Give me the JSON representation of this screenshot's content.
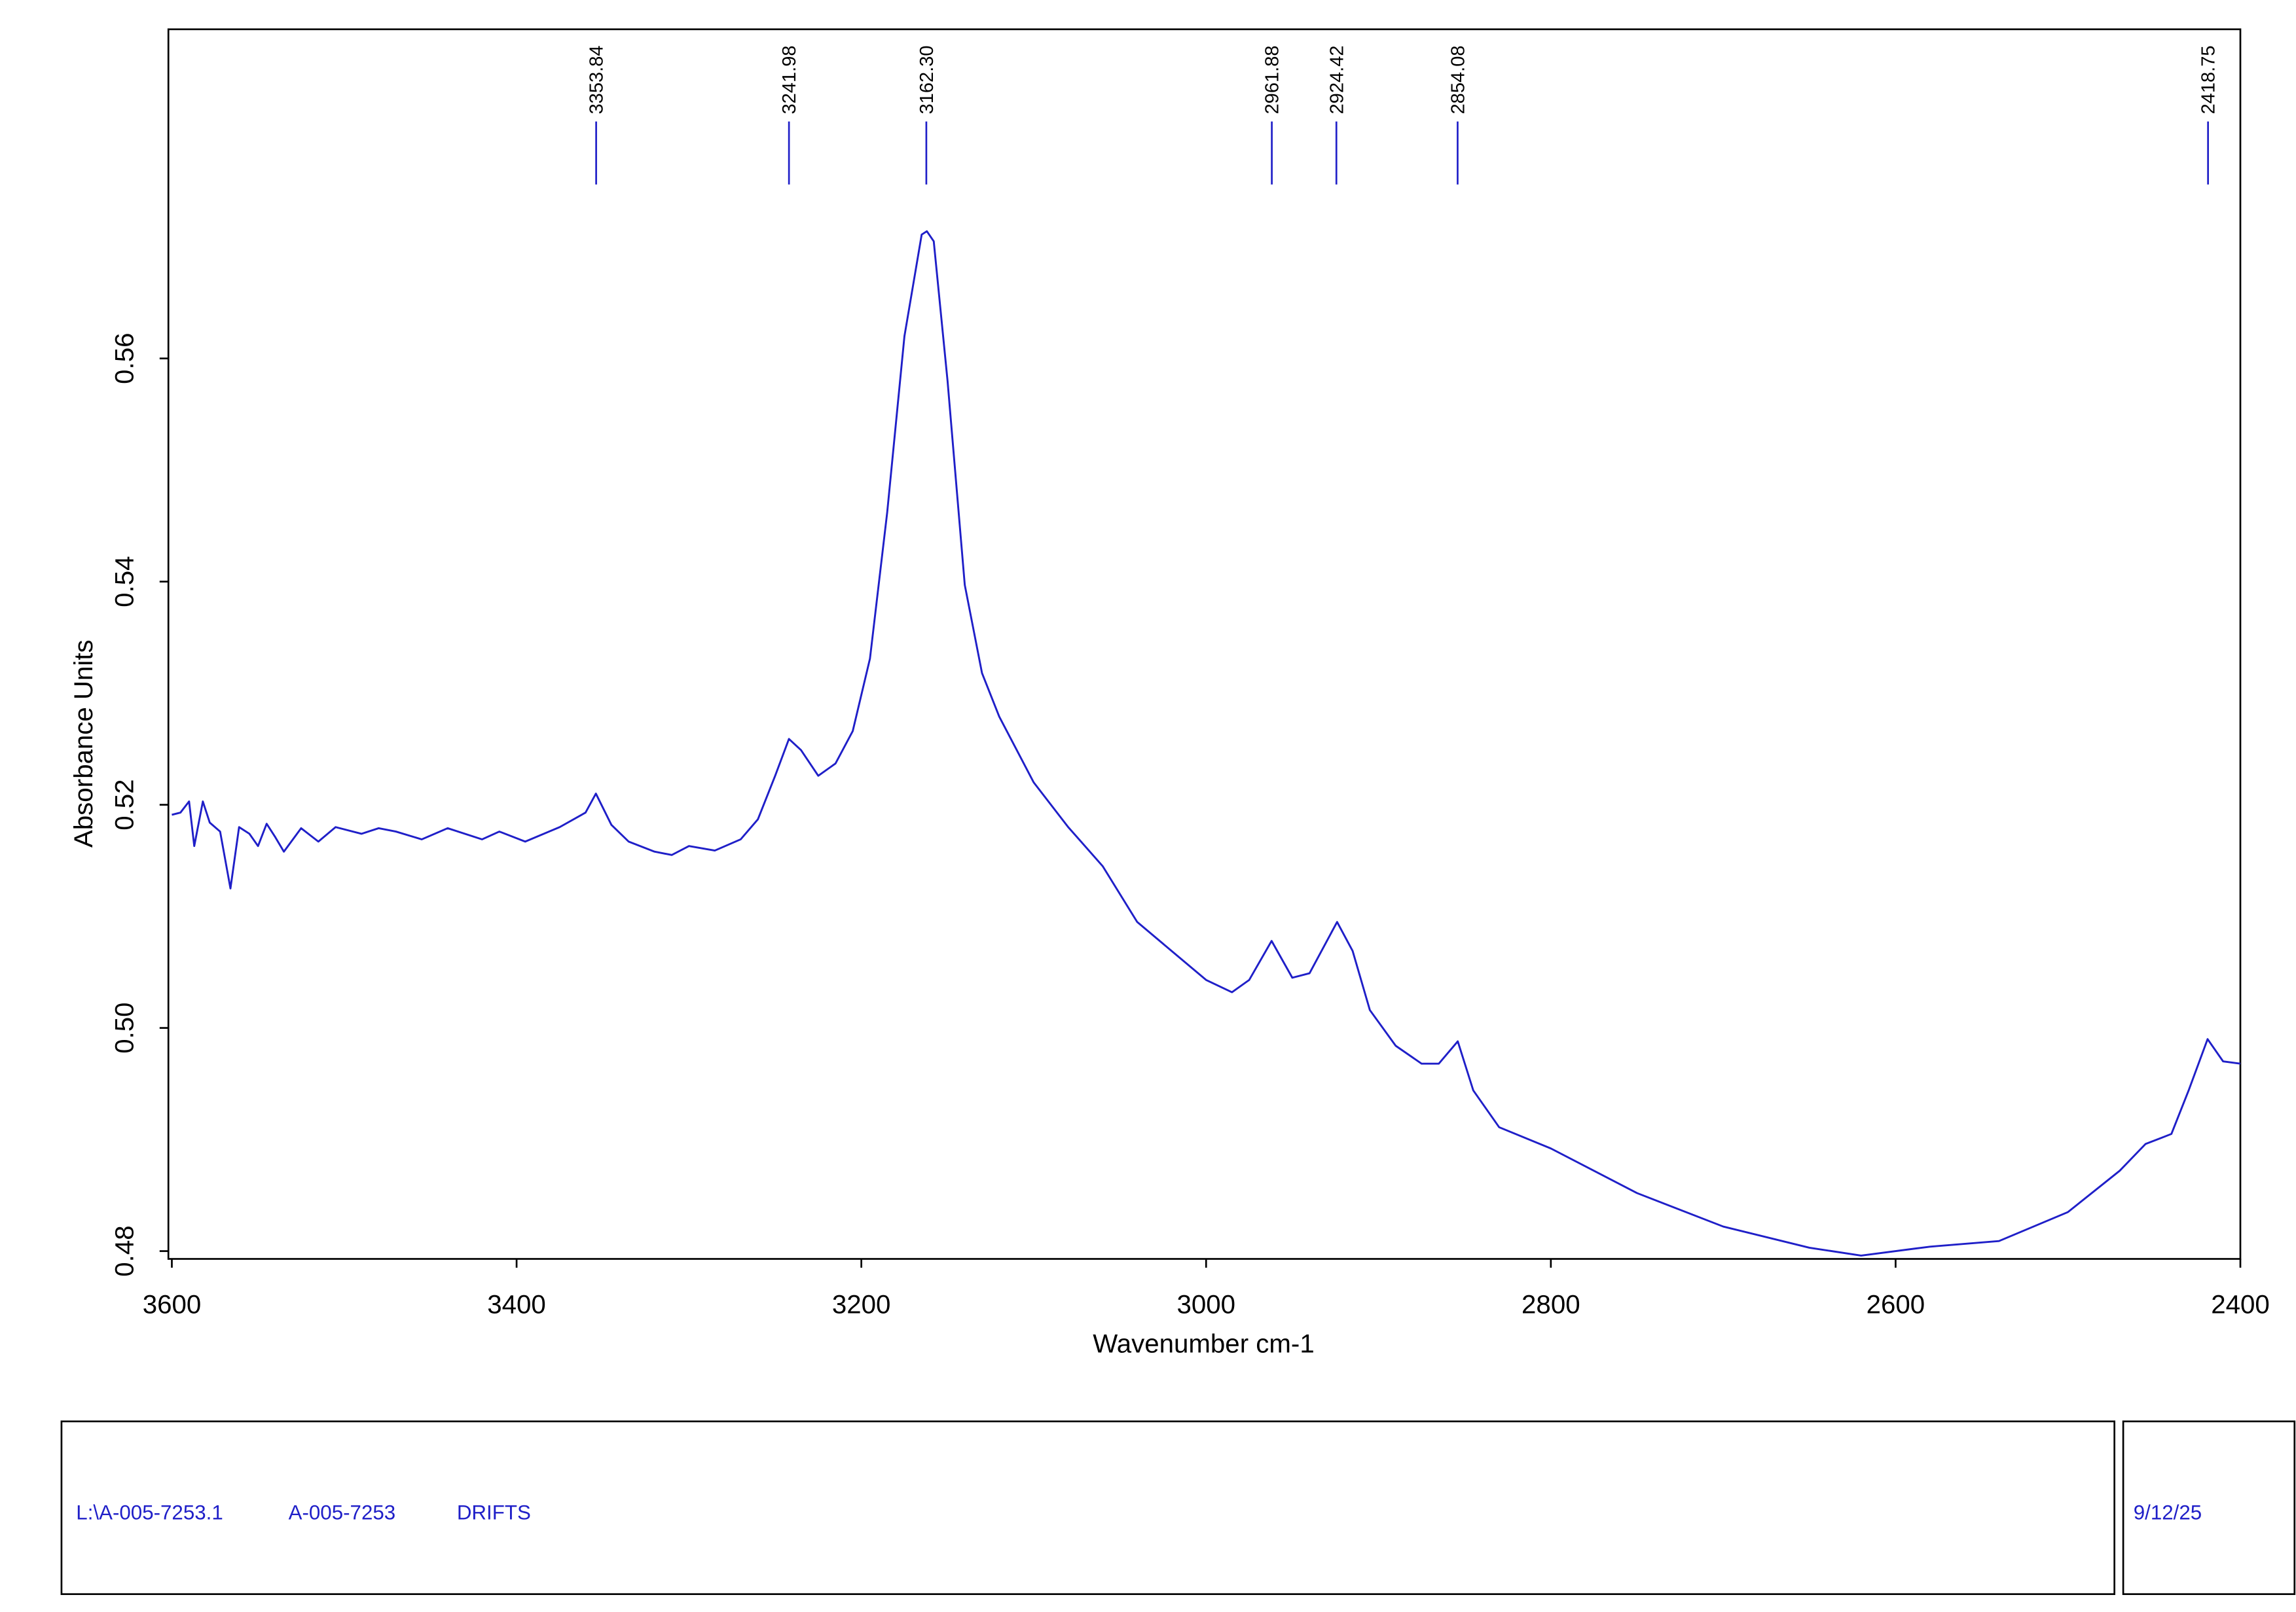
{
  "chart_data": {
    "type": "line",
    "x_label": "Wavenumber cm-1",
    "y_label": "Absorbance Units",
    "x": [
      3600,
      3595,
      3590,
      3587,
      3582,
      3578,
      3572,
      3566,
      3561,
      3555,
      3550,
      3545,
      3540,
      3535,
      3525,
      3515,
      3505,
      3490,
      3480,
      3470,
      3455,
      3440,
      3420,
      3410,
      3395,
      3375,
      3360,
      3354,
      3345,
      3335,
      3320,
      3310,
      3300,
      3285,
      3270,
      3260,
      3250,
      3242,
      3235,
      3225,
      3215,
      3205,
      3195,
      3185,
      3175,
      3165,
      3162,
      3158,
      3150,
      3140,
      3130,
      3120,
      3100,
      3080,
      3060,
      3040,
      3020,
      3000,
      2985,
      2975,
      2962,
      2950,
      2940,
      2924,
      2915,
      2905,
      2890,
      2875,
      2865,
      2854,
      2845,
      2830,
      2800,
      2750,
      2700,
      2650,
      2620,
      2580,
      2540,
      2500,
      2470,
      2455,
      2440,
      2430,
      2419,
      2410,
      2400
    ],
    "values": [
      0.5191,
      0.5193,
      0.5203,
      0.5163,
      0.5203,
      0.5184,
      0.5176,
      0.5125,
      0.518,
      0.5174,
      0.5163,
      0.5183,
      0.5171,
      0.5158,
      0.5179,
      0.5167,
      0.518,
      0.5174,
      0.5179,
      0.5176,
      0.5169,
      0.5179,
      0.5169,
      0.5176,
      0.5167,
      0.518,
      0.5193,
      0.521,
      0.5182,
      0.5167,
      0.5158,
      0.5155,
      0.5163,
      0.5159,
      0.5169,
      0.5187,
      0.5226,
      0.5259,
      0.5249,
      0.5226,
      0.5237,
      0.5266,
      0.5331,
      0.5462,
      0.562,
      0.5711,
      0.5714,
      0.5705,
      0.558,
      0.5397,
      0.5318,
      0.5279,
      0.522,
      0.518,
      0.5145,
      0.5095,
      0.5069,
      0.5043,
      0.5032,
      0.5043,
      0.5078,
      0.5045,
      0.5049,
      0.5095,
      0.5069,
      0.5016,
      0.4984,
      0.4968,
      0.4968,
      0.4988,
      0.4944,
      0.4911,
      0.4892,
      0.4852,
      0.4822,
      0.4803,
      0.4796,
      0.4804,
      0.4809,
      0.4835,
      0.4872,
      0.4896,
      0.4905,
      0.4944,
      0.499,
      0.497,
      0.4968
    ],
    "color": "#1f1fc8",
    "xlim": [
      3602,
      2400
    ],
    "xticks": [
      3600,
      3400,
      3200,
      3000,
      2800,
      2600,
      2400
    ],
    "ylim": [
      0.4793,
      0.5895
    ],
    "yticks": [
      0.48,
      {
        "value": 0.5,
        "label": "0.50"
      },
      0.52,
      0.54,
      0.56
    ],
    "peaks": [
      3353.84,
      3241.98,
      {
        "value": 3162.3,
        "label": "3162.30"
      },
      2961.88,
      2924.42,
      2854.08,
      2418.75
    ]
  },
  "footer": {
    "file": "L:\\A-005-7253.1",
    "sample": "A-005-7253",
    "method": "DRIFTS",
    "date": "9/12/25"
  }
}
